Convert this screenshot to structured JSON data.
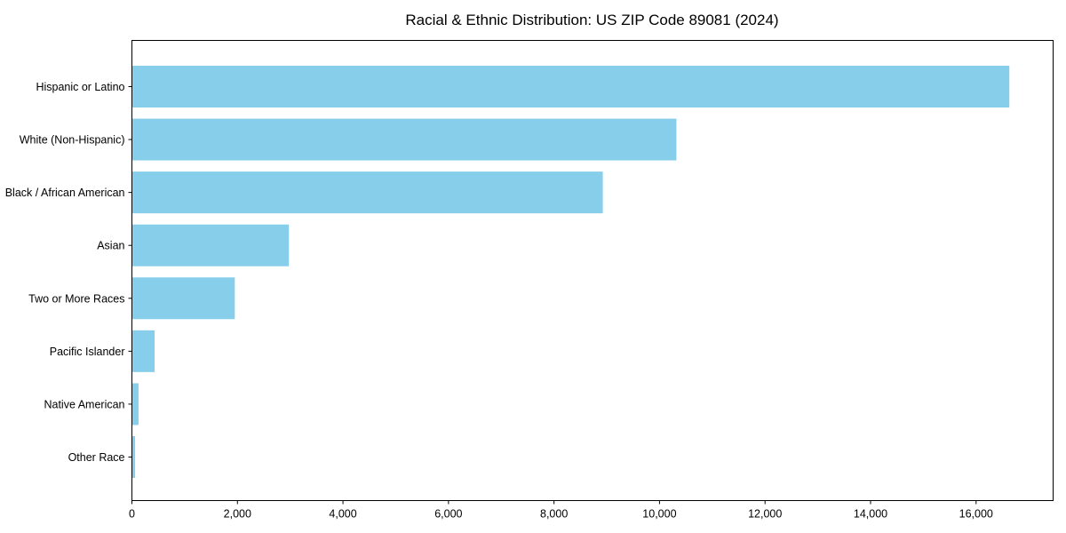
{
  "chart_data": {
    "type": "bar",
    "orientation": "horizontal",
    "title": "Racial & Ethnic Distribution: US ZIP Code 89081 (2024)",
    "categories": [
      "Hispanic or Latino",
      "White (Non-Hispanic)",
      "Black / African American",
      "Asian",
      "Two or More Races",
      "Pacific Islander",
      "Native American",
      "Other Race"
    ],
    "values": [
      16630,
      10320,
      8925,
      2975,
      1950,
      430,
      125,
      60
    ],
    "xlabel": "",
    "ylabel": "",
    "x_ticks": [
      0,
      2000,
      4000,
      6000,
      8000,
      10000,
      12000,
      14000,
      16000
    ],
    "x_tick_labels": [
      "0",
      "2,000",
      "4,000",
      "6,000",
      "8,000",
      "10,000",
      "12,000",
      "14,000",
      "16,000"
    ],
    "xlim": [
      0,
      17460
    ],
    "grid": false,
    "legend": "none",
    "bar_color": "#87CEEB",
    "frame_color": "#000000",
    "text_color": "#000000",
    "background": "#FFFFFF"
  }
}
